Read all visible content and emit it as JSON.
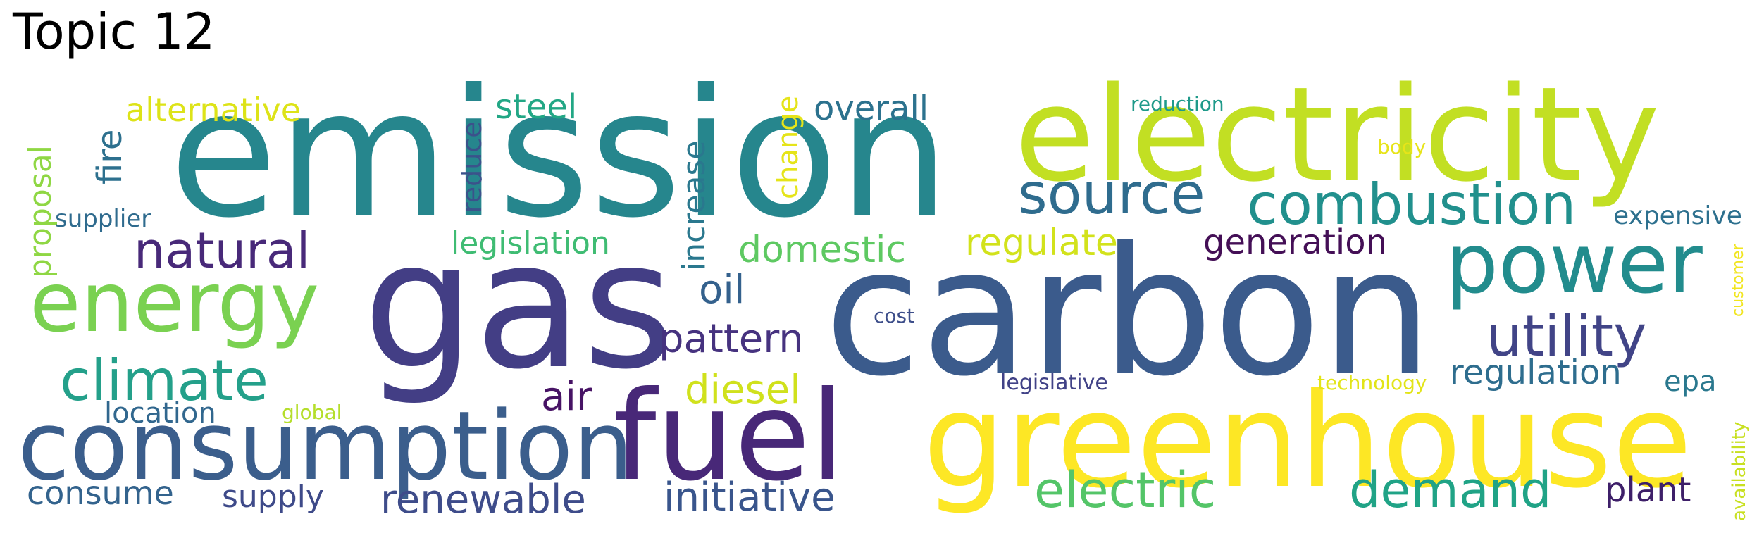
{
  "title": "Topic 12",
  "words": [
    {
      "text": "emission",
      "color": "#26868d"
    },
    {
      "text": "carbon",
      "color": "#3b5b8c"
    },
    {
      "text": "gas",
      "color": "#433e85"
    },
    {
      "text": "electricity",
      "color": "#c2df23"
    },
    {
      "text": "greenhouse",
      "color": "#fde725"
    },
    {
      "text": "fuel",
      "color": "#482878"
    },
    {
      "text": "consumption",
      "color": "#3b5e8c"
    },
    {
      "text": "energy",
      "color": "#7ad151"
    },
    {
      "text": "power",
      "color": "#228c8d"
    },
    {
      "text": "combustion",
      "color": "#21908d"
    },
    {
      "text": "source",
      "color": "#2f6c8e"
    },
    {
      "text": "climate",
      "color": "#24a08a"
    },
    {
      "text": "utility",
      "color": "#414487"
    },
    {
      "text": "natural",
      "color": "#482979"
    },
    {
      "text": "electric",
      "color": "#54c568"
    },
    {
      "text": "demand",
      "color": "#20a386"
    },
    {
      "text": "pattern",
      "color": "#46327f"
    },
    {
      "text": "initiative",
      "color": "#39558c"
    },
    {
      "text": "renewable",
      "color": "#3e4c8a"
    },
    {
      "text": "diesel",
      "color": "#d0e11c"
    },
    {
      "text": "domestic",
      "color": "#5ec962"
    },
    {
      "text": "regulate",
      "color": "#d2e21b"
    },
    {
      "text": "generation",
      "color": "#440f56"
    },
    {
      "text": "regulation",
      "color": "#2e6d8e"
    },
    {
      "text": "plant",
      "color": "#3e1f69"
    },
    {
      "text": "steel",
      "color": "#22a785"
    },
    {
      "text": "overall",
      "color": "#2c728e"
    },
    {
      "text": "alternative",
      "color": "#dde318"
    },
    {
      "text": "legislation",
      "color": "#3fbc73"
    },
    {
      "text": "oil",
      "color": "#34618d"
    },
    {
      "text": "air",
      "color": "#471365"
    },
    {
      "text": "consume",
      "color": "#33638d"
    },
    {
      "text": "supply",
      "color": "#3e4a89"
    },
    {
      "text": "location",
      "color": "#31678e"
    },
    {
      "text": "epa",
      "color": "#2a788e"
    },
    {
      "text": "fire",
      "color": "#2d708e"
    },
    {
      "text": "proposal",
      "color": "#8fd744"
    },
    {
      "text": "reduce",
      "color": "#3b528b"
    },
    {
      "text": "increase",
      "color": "#2a788e"
    },
    {
      "text": "change",
      "color": "#e5e419"
    },
    {
      "text": "supplier",
      "color": "#2f6b8e"
    },
    {
      "text": "expensive",
      "color": "#2d708e"
    },
    {
      "text": "global",
      "color": "#b5de2b"
    },
    {
      "text": "cost",
      "color": "#3d4e8a"
    },
    {
      "text": "legislative",
      "color": "#414287"
    },
    {
      "text": "technology",
      "color": "#e2e418"
    },
    {
      "text": "reduction",
      "color": "#1f9a8a"
    },
    {
      "text": "body",
      "color": "#e7e419"
    },
    {
      "text": "availability",
      "color": "#c8e020"
    },
    {
      "text": "customer",
      "color": "#f1e51d"
    }
  ]
}
